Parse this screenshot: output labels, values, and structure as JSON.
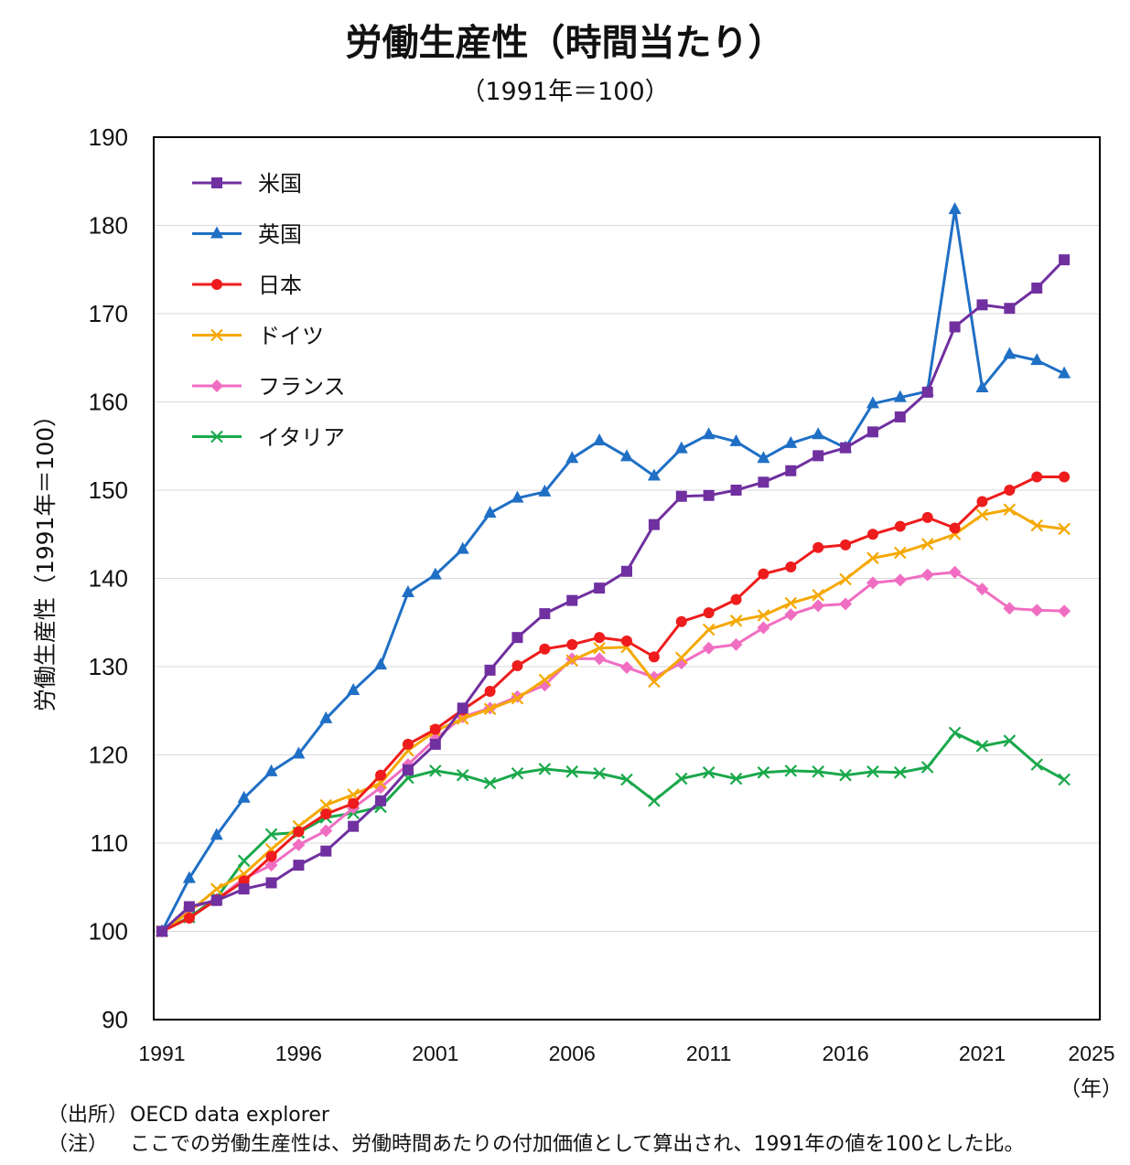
{
  "chart_data": {
    "type": "line",
    "title": "労働生産性（時間当たり）",
    "subtitle": "（1991年＝100）",
    "ylabel": "労働生産性（1991年＝100）",
    "xlabel": "",
    "x_unit": "（年）",
    "x_tick_labels": [
      "1991",
      "1996",
      "2001",
      "2006",
      "2011",
      "2016",
      "2021",
      "2025"
    ],
    "y_ticks": [
      90,
      100,
      110,
      120,
      130,
      140,
      150,
      160,
      170,
      180,
      190
    ],
    "ylim": [
      90,
      190
    ],
    "xlim": [
      1991,
      2025
    ],
    "grid": "horizontal",
    "legend": "top-left",
    "x": [
      1991,
      1992,
      1993,
      1994,
      1995,
      1996,
      1997,
      1998,
      1999,
      2000,
      2001,
      2002,
      2003,
      2004,
      2005,
      2006,
      2007,
      2008,
      2009,
      2010,
      2011,
      2012,
      2013,
      2014,
      2015,
      2016,
      2017,
      2018,
      2019,
      2020,
      2021,
      2022,
      2023,
      2024
    ],
    "series": [
      {
        "name": "米国",
        "color": "#7030a0",
        "marker": "square",
        "values": [
          100,
          102.8,
          103.5,
          104.8,
          105.5,
          107.5,
          109.1,
          111.9,
          114.8,
          118.3,
          121.2,
          125.3,
          129.6,
          133.3,
          136.0,
          137.5,
          138.9,
          140.8,
          146.1,
          149.3,
          149.4,
          150.0,
          150.9,
          152.2,
          153.9,
          154.8,
          156.6,
          158.3,
          161.1,
          168.5,
          171.0,
          170.6,
          172.9,
          176.1
        ]
      },
      {
        "name": "英国",
        "color": "#1f6fc5",
        "marker": "triangle",
        "values": [
          100,
          106.0,
          110.9,
          115.1,
          118.1,
          120.1,
          124.1,
          127.3,
          130.2,
          138.4,
          140.4,
          143.3,
          147.4,
          149.1,
          149.8,
          153.6,
          155.6,
          153.8,
          151.6,
          154.7,
          156.3,
          155.5,
          153.6,
          155.3,
          156.3,
          154.8,
          159.8,
          160.5,
          161.2,
          181.8,
          161.6,
          165.4,
          164.7,
          163.2
        ]
      },
      {
        "name": "日本",
        "color": "#ee1c1c",
        "marker": "circle",
        "values": [
          100,
          101.5,
          103.6,
          105.7,
          108.5,
          111.3,
          113.3,
          114.5,
          117.7,
          121.2,
          122.9,
          125.1,
          127.2,
          130.1,
          132.0,
          132.5,
          133.3,
          132.9,
          131.1,
          135.1,
          136.1,
          137.6,
          140.5,
          141.3,
          143.5,
          143.8,
          145.0,
          145.9,
          146.9,
          145.7,
          148.7,
          150.0,
          151.5,
          151.5
        ]
      },
      {
        "name": "ドイツ",
        "color": "#f5a800",
        "marker": "x",
        "values": [
          100,
          102.2,
          104.8,
          106.5,
          109.3,
          111.9,
          114.3,
          115.5,
          116.8,
          120.5,
          122.7,
          124.1,
          125.2,
          126.4,
          128.5,
          130.7,
          132.1,
          132.2,
          128.3,
          131.0,
          134.2,
          135.2,
          135.8,
          137.2,
          138.1,
          139.9,
          142.3,
          142.9,
          143.9,
          145.0,
          147.2,
          147.8,
          146.0,
          145.6
        ]
      },
      {
        "name": "フランス",
        "color": "#f06ec2",
        "marker": "diamond",
        "values": [
          100,
          102.6,
          103.6,
          106.0,
          107.5,
          109.8,
          111.4,
          114.0,
          116.3,
          118.9,
          121.8,
          124.3,
          125.3,
          126.6,
          127.9,
          130.9,
          130.9,
          129.9,
          128.8,
          130.4,
          132.1,
          132.5,
          134.4,
          135.9,
          136.9,
          137.1,
          139.5,
          139.8,
          140.4,
          140.7,
          138.8,
          136.6,
          136.4,
          136.3
        ]
      },
      {
        "name": "イタリア",
        "color": "#1aa84b",
        "marker": "x",
        "values": [
          100,
          101.6,
          103.8,
          108.0,
          111.0,
          111.2,
          112.9,
          113.4,
          114.1,
          117.4,
          118.2,
          117.7,
          116.8,
          117.9,
          118.4,
          118.1,
          117.9,
          117.2,
          114.8,
          117.3,
          118.0,
          117.3,
          118.0,
          118.2,
          118.1,
          117.7,
          118.1,
          118.0,
          118.6,
          122.5,
          121.0,
          121.6,
          118.9,
          117.2
        ]
      }
    ]
  },
  "footnotes": [
    {
      "key": "（出所）",
      "text": "OECD data explorer"
    },
    {
      "key": "（注）",
      "text": "ここでの労働生産性は、労働時間あたりの付加価値として算出され、1991年の値を100とした比。"
    }
  ]
}
